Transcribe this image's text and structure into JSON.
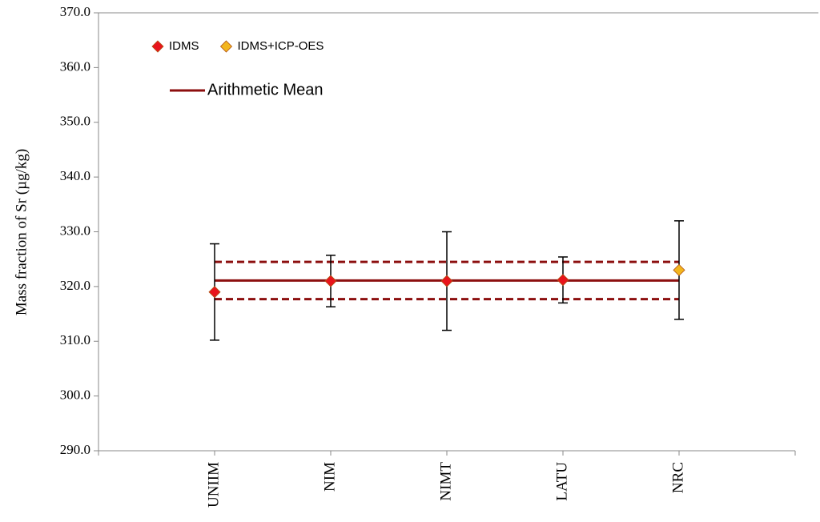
{
  "chart_data": {
    "type": "line",
    "y_label": "Mass fraction of Sr (µg/kg)",
    "categories": [
      null,
      "UNIIM",
      "NIM",
      "NIMT",
      "LATU",
      "NRC",
      null
    ],
    "ylim": [
      290,
      370
    ],
    "yticks": [
      {
        "value": 290,
        "label": "290.0"
      },
      {
        "value": 300,
        "label": "300.0"
      },
      {
        "value": 310,
        "label": "310.0"
      },
      {
        "value": 320,
        "label": "320.0"
      },
      {
        "value": 330,
        "label": "330.0"
      },
      {
        "value": 340,
        "label": "340.0"
      },
      {
        "value": 350,
        "label": "350.0"
      },
      {
        "value": 360,
        "label": "360.0"
      },
      {
        "value": 370,
        "label": "370.0"
      }
    ],
    "grid": false,
    "series": [
      {
        "name": "IDMS",
        "kind": "point",
        "color": "#e8141c",
        "values": [
          null,
          319.0,
          321.0,
          321.0,
          321.2,
          null,
          null
        ],
        "errors": [
          null,
          8.8,
          4.7,
          9.0,
          4.2,
          null,
          null
        ]
      },
      {
        "name": "IDMS+ICP-OES",
        "kind": "point",
        "color": "#f2b51e",
        "values": [
          null,
          null,
          null,
          null,
          null,
          323.0,
          null
        ],
        "errors": [
          null,
          null,
          null,
          null,
          null,
          9.0,
          null
        ]
      },
      {
        "name": "Arithmetic Mean",
        "kind": "line",
        "color": "#8c0f0f",
        "values": [
          null,
          321.1,
          321.1,
          321.1,
          321.1,
          321.1,
          null
        ]
      },
      {
        "kind": "line",
        "dashed": true,
        "color": "#8c0f0f",
        "values": [
          null,
          324.5,
          324.5,
          324.5,
          324.5,
          324.5,
          null
        ]
      },
      {
        "kind": "line",
        "dashed": true,
        "color": "#8c0f0f",
        "values": [
          null,
          317.7,
          317.7,
          317.7,
          317.7,
          317.7,
          null
        ]
      }
    ]
  }
}
